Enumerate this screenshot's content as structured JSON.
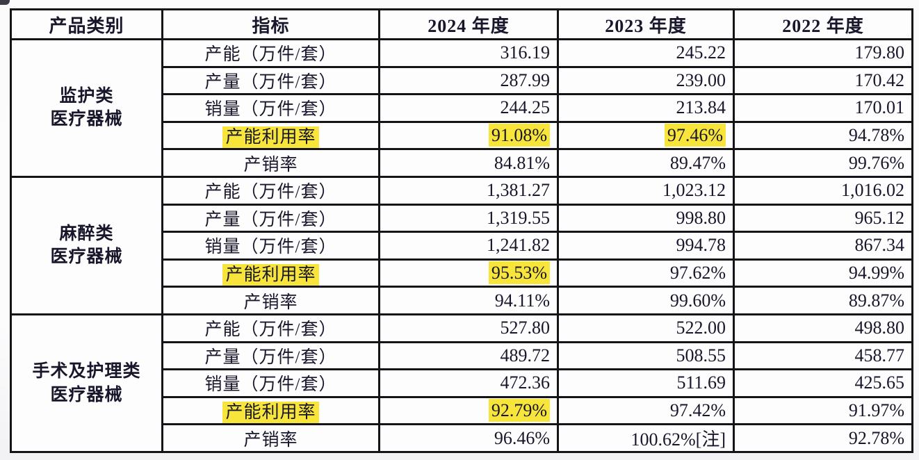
{
  "colors": {
    "highlight_yellow": "#f7e53c",
    "border_black": "#141418",
    "text_dark": "#18162a",
    "cell_background": "#fdfdfe",
    "page_background": "#fbfbfc"
  },
  "table": {
    "headers": [
      "产品类别",
      "指标",
      "2024 年度",
      "2023 年度",
      "2022 年度"
    ],
    "groups": [
      {
        "category_lines": [
          "监护类",
          "医疗器械"
        ],
        "rows": [
          {
            "indicator": "产能（万件/套）",
            "indicator_highlight": false,
            "values": [
              "316.19",
              "245.22",
              "179.80"
            ],
            "value_highlights": [
              false,
              false,
              false
            ]
          },
          {
            "indicator": "产量（万件/套）",
            "indicator_highlight": false,
            "values": [
              "287.99",
              "239.00",
              "170.42"
            ],
            "value_highlights": [
              false,
              false,
              false
            ]
          },
          {
            "indicator": "销量（万件/套）",
            "indicator_highlight": false,
            "values": [
              "244.25",
              "213.84",
              "170.01"
            ],
            "value_highlights": [
              false,
              false,
              false
            ]
          },
          {
            "indicator": "产能利用率",
            "indicator_highlight": true,
            "values": [
              "91.08%",
              "97.46%",
              "94.78%"
            ],
            "value_highlights": [
              true,
              true,
              false
            ]
          },
          {
            "indicator": "产销率",
            "indicator_highlight": false,
            "values": [
              "84.81%",
              "89.47%",
              "99.76%"
            ],
            "value_highlights": [
              false,
              false,
              false
            ]
          }
        ]
      },
      {
        "category_lines": [
          "麻醉类",
          "医疗器械"
        ],
        "rows": [
          {
            "indicator": "产能（万件/套）",
            "indicator_highlight": false,
            "values": [
              "1,381.27",
              "1,023.12",
              "1,016.02"
            ],
            "value_highlights": [
              false,
              false,
              false
            ]
          },
          {
            "indicator": "产量（万件/套）",
            "indicator_highlight": false,
            "values": [
              "1,319.55",
              "998.80",
              "965.12"
            ],
            "value_highlights": [
              false,
              false,
              false
            ]
          },
          {
            "indicator": "销量（万件/套）",
            "indicator_highlight": false,
            "values": [
              "1,241.82",
              "994.78",
              "867.34"
            ],
            "value_highlights": [
              false,
              false,
              false
            ]
          },
          {
            "indicator": "产能利用率",
            "indicator_highlight": true,
            "values": [
              "95.53%",
              "97.62%",
              "94.99%"
            ],
            "value_highlights": [
              true,
              false,
              false
            ]
          },
          {
            "indicator": "产销率",
            "indicator_highlight": false,
            "values": [
              "94.11%",
              "99.60%",
              "89.87%"
            ],
            "value_highlights": [
              false,
              false,
              false
            ]
          }
        ]
      },
      {
        "category_lines": [
          "手术及护理类",
          "医疗器械"
        ],
        "rows": [
          {
            "indicator": "产能（万件/套）",
            "indicator_highlight": false,
            "values": [
              "527.80",
              "522.00",
              "498.80"
            ],
            "value_highlights": [
              false,
              false,
              false
            ]
          },
          {
            "indicator": "产量（万件/套）",
            "indicator_highlight": false,
            "values": [
              "489.72",
              "508.55",
              "458.77"
            ],
            "value_highlights": [
              false,
              false,
              false
            ]
          },
          {
            "indicator": "销量（万件/套）",
            "indicator_highlight": false,
            "values": [
              "472.36",
              "511.69",
              "425.65"
            ],
            "value_highlights": [
              false,
              false,
              false
            ]
          },
          {
            "indicator": "产能利用率",
            "indicator_highlight": true,
            "values": [
              "92.79%",
              "97.42%",
              "91.97%"
            ],
            "value_highlights": [
              true,
              false,
              false
            ]
          },
          {
            "indicator": "产销率",
            "indicator_highlight": false,
            "values": [
              "96.46%",
              "100.62%[注]",
              "92.78%"
            ],
            "value_highlights": [
              false,
              false,
              false
            ]
          }
        ]
      }
    ]
  }
}
